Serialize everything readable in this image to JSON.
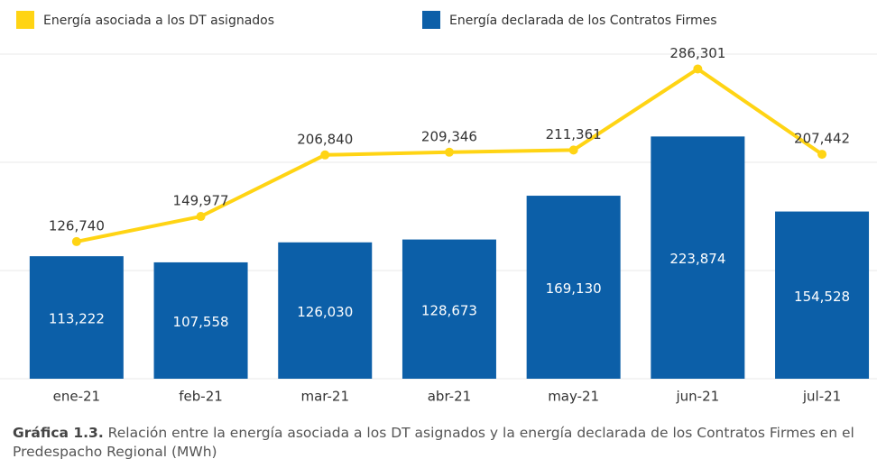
{
  "chart_data": {
    "type": "bar_line",
    "categories": [
      "ene-21",
      "feb-21",
      "mar-21",
      "abr-21",
      "may-21",
      "jun-21",
      "jul-21"
    ],
    "series": [
      {
        "name": "Energía asociada a los DT asignados",
        "type": "line",
        "color": "#FFD414",
        "values": [
          126740,
          149977,
          206840,
          209346,
          211361,
          286301,
          207442
        ],
        "value_labels": [
          "126,740",
          "149,977",
          "206,840",
          "209,346",
          "211,361",
          "286,301",
          "207,442"
        ]
      },
      {
        "name": "Energía declarada de los Contratos Firmes",
        "type": "bar",
        "color": "#0C5FA8",
        "values": [
          113222,
          107558,
          126030,
          128673,
          169130,
          223874,
          154528
        ],
        "value_labels": [
          "113,222",
          "107,558",
          "126,030",
          "128,673",
          "169,130",
          "223,874",
          "154,528"
        ]
      }
    ],
    "ylim": [
      0,
      300000
    ],
    "yticks": [
      0,
      100000,
      200000,
      300000
    ],
    "grid": true,
    "caption": {
      "label": "Gráfica 1.3.",
      "text": "Relación entre la energía asociada a los DT asignados y la energía declarada de los Contratos Firmes en el Predespacho Regional (MWh)"
    }
  }
}
